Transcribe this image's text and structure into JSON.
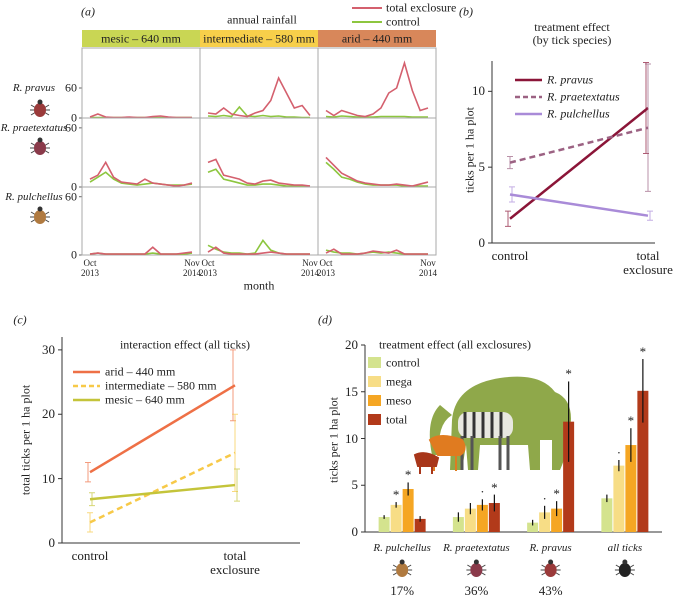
{
  "chart_data": [
    {
      "type": "line-grid",
      "label": "(a)",
      "title": "annual rainfall",
      "xlabel": "month",
      "categories": [
        "Oct\n2013",
        null,
        null,
        null,
        null,
        null,
        null,
        null,
        null,
        null,
        null,
        null,
        null,
        "Nov\n2014"
      ],
      "series": [
        {
          "name": "total exclosure",
          "color": "#d4606e"
        },
        {
          "name": "control",
          "color": "#8dc63f"
        }
      ],
      "columns": [
        {
          "name": "mesic – 640 mm",
          "color": "#c9d654"
        },
        {
          "name": "intermediate – 580 mm",
          "color": "#f7cf4a"
        },
        {
          "name": "arid – 440 mm",
          "color": "#d8875a"
        }
      ],
      "rows": [
        {
          "name": "R. pravus",
          "ylim": [
            0,
            140
          ],
          "yticks": [
            0,
            60
          ],
          "panels": [
            {
              "series": [
                {
                  "values": [
                    2,
                    8,
                    2,
                    1,
                    1,
                    2,
                    1,
                    1,
                    3,
                    4,
                    2,
                    1,
                    1,
                    1
                  ]
                },
                {
                  "values": [
                    1,
                    1,
                    1,
                    1,
                    1,
                    1,
                    1,
                    1,
                    1,
                    1,
                    1,
                    1,
                    1,
                    1
                  ]
                }
              ]
            },
            {
              "series": [
                {
                  "values": [
                    10,
                    8,
                    20,
                    8,
                    5,
                    3,
                    10,
                    15,
                    35,
                    80,
                    50,
                    20,
                    25,
                    5
                  ]
                },
                {
                  "values": [
                    4,
                    3,
                    5,
                    3,
                    22,
                    4,
                    3,
                    5,
                    3,
                    4,
                    2,
                    2,
                    1,
                    1
                  ]
                }
              ]
            },
            {
              "series": [
                {
                  "values": [
                    15,
                    5,
                    15,
                    10,
                    5,
                    3,
                    8,
                    20,
                    50,
                    60,
                    110,
                    55,
                    15,
                    20
                  ]
                },
                {
                  "values": [
                    3,
                    2,
                    4,
                    3,
                    2,
                    2,
                    2,
                    3,
                    3,
                    3,
                    3,
                    2,
                    2,
                    2
                  ]
                }
              ]
            }
          ]
        },
        {
          "name": "R. praetextatus",
          "ylim": [
            0,
            70
          ],
          "yticks": [
            0,
            60
          ],
          "panels": [
            {
              "series": [
                {
                  "values": [
                    8,
                    12,
                    25,
                    10,
                    5,
                    4,
                    3,
                    8,
                    4,
                    3,
                    2,
                    1,
                    2,
                    4
                  ]
                },
                {
                  "values": [
                    5,
                    10,
                    15,
                    8,
                    4,
                    3,
                    2,
                    3,
                    4,
                    3,
                    2,
                    2,
                    2,
                    3
                  ]
                }
              ]
            },
            {
              "series": [
                {
                  "values": [
                    25,
                    28,
                    12,
                    10,
                    8,
                    4,
                    3,
                    6,
                    7,
                    4,
                    3,
                    2,
                    2,
                    1
                  ]
                },
                {
                  "values": [
                    15,
                    18,
                    8,
                    6,
                    4,
                    2,
                    2,
                    3,
                    3,
                    2,
                    1,
                    1,
                    1,
                    1
                  ]
                }
              ]
            },
            {
              "series": [
                {
                  "values": [
                    30,
                    22,
                    14,
                    10,
                    6,
                    4,
                    3,
                    2,
                    2,
                    3,
                    2,
                    1,
                    3,
                    5
                  ]
                },
                {
                  "values": [
                    25,
                    18,
                    10,
                    8,
                    5,
                    3,
                    2,
                    2,
                    2,
                    2,
                    1,
                    1,
                    1,
                    1
                  ]
                }
              ]
            }
          ]
        },
        {
          "name": "R. pulchellus",
          "ylim": [
            0,
            70
          ],
          "yticks": [
            0,
            60
          ],
          "panels": [
            {
              "series": [
                {
                  "values": [
                    1,
                    2,
                    1,
                    1,
                    1,
                    1,
                    1,
                    1,
                    8,
                    1,
                    1,
                    1,
                    2,
                    3
                  ]
                },
                {
                  "values": [
                    1,
                    2,
                    1,
                    1,
                    1,
                    1,
                    1,
                    1,
                    2,
                    1,
                    1,
                    1,
                    1,
                    2
                  ]
                }
              ]
            },
            {
              "series": [
                {
                  "values": [
                    3,
                    8,
                    2,
                    1,
                    1,
                    1,
                    1,
                    2,
                    3,
                    2,
                    1,
                    1,
                    1,
                    1
                  ]
                },
                {
                  "values": [
                    10,
                    6,
                    3,
                    2,
                    2,
                    1,
                    2,
                    15,
                    5,
                    2,
                    1,
                    1,
                    1,
                    1
                  ]
                }
              ]
            },
            {
              "series": [
                {
                  "values": [
                    2,
                    6,
                    1,
                    1,
                    1,
                    2,
                    4,
                    3,
                    2,
                    5,
                    1,
                    1,
                    1,
                    1
                  ]
                },
                {
                  "values": [
                    5,
                    3,
                    2,
                    2,
                    1,
                    2,
                    3,
                    2,
                    3,
                    2,
                    1,
                    1,
                    1,
                    1
                  ]
                }
              ]
            }
          ]
        }
      ]
    },
    {
      "type": "line",
      "label": "(b)",
      "title": "treatment effect\n(by tick species)",
      "ylabel": "ticks per 1 ha plot",
      "categories": [
        "control",
        "total\nexclosure"
      ],
      "ylim": [
        0,
        12
      ],
      "yticks": [
        0,
        5,
        10
      ],
      "series": [
        {
          "name": "R. pravus",
          "color": "#8b1538",
          "dashed": false,
          "values": [
            1.6,
            8.9
          ],
          "errors": [
            0.5,
            3.0
          ]
        },
        {
          "name": "R. praetextatus",
          "color": "#9c6283",
          "dashed": true,
          "values": [
            5.3,
            7.6
          ],
          "errors": [
            0.4,
            4.2
          ]
        },
        {
          "name": "R. pulchellus",
          "color": "#a98bd8",
          "dashed": false,
          "values": [
            3.2,
            1.8
          ],
          "errors": [
            0.5,
            0.3
          ]
        }
      ]
    },
    {
      "type": "line",
      "label": "(c)",
      "title": "interaction effect (all ticks)",
      "ylabel": "total ticks per 1 ha plot",
      "categories": [
        "control",
        "total\nexclosure"
      ],
      "ylim": [
        0,
        32
      ],
      "yticks": [
        0,
        10,
        20,
        30
      ],
      "series": [
        {
          "name": "arid – 440 mm",
          "color": "#ee7046",
          "dashed": false,
          "values": [
            11,
            24.5
          ],
          "errors": [
            1.5,
            5.5
          ]
        },
        {
          "name": "intermediate – 580 mm",
          "color": "#f7c948",
          "dashed": true,
          "values": [
            3.2,
            14
          ],
          "errors": [
            1.5,
            6
          ]
        },
        {
          "name": "mesic – 640 mm",
          "color": "#c4c43a",
          "dashed": false,
          "values": [
            6.8,
            9
          ],
          "errors": [
            1,
            2.5
          ]
        }
      ]
    },
    {
      "type": "bar",
      "label": "(d)",
      "title": "treatment effect (all exclosures)",
      "ylabel": "ticks per 1 ha plot",
      "categories": [
        "R. pulchellus",
        "R. praetextatus",
        "R. pravus",
        "all ticks"
      ],
      "category_notes": [
        "17%",
        "36%",
        "43%",
        null
      ],
      "ylim": [
        0,
        20
      ],
      "yticks": [
        0,
        5,
        10,
        15,
        20
      ],
      "series": [
        {
          "name": "control",
          "color": "#d4e38e",
          "values": [
            1.6,
            1.6,
            1.0,
            3.6
          ],
          "errors": [
            0.2,
            0.5,
            0.3,
            0.4
          ],
          "significance": [
            null,
            null,
            null,
            null
          ]
        },
        {
          "name": "mega",
          "color": "#f7dd86",
          "values": [
            2.9,
            2.5,
            2.1,
            7.1
          ],
          "errors": [
            0.3,
            0.6,
            0.7,
            0.6
          ],
          "significance": [
            "*",
            null,
            "·",
            "·"
          ]
        },
        {
          "name": "meso",
          "color": "#f5a623",
          "values": [
            4.6,
            2.9,
            2.5,
            9.3
          ],
          "errors": [
            0.7,
            0.6,
            0.8,
            1.8
          ],
          "significance": [
            "*",
            "·",
            "*",
            "*"
          ]
        },
        {
          "name": "total",
          "color": "#b23a1a",
          "values": [
            1.4,
            3.1,
            11.8,
            15.1
          ],
          "errors": [
            0.3,
            0.9,
            4.3,
            3.4
          ],
          "significance": [
            null,
            "*",
            "*",
            "*"
          ]
        }
      ]
    }
  ]
}
